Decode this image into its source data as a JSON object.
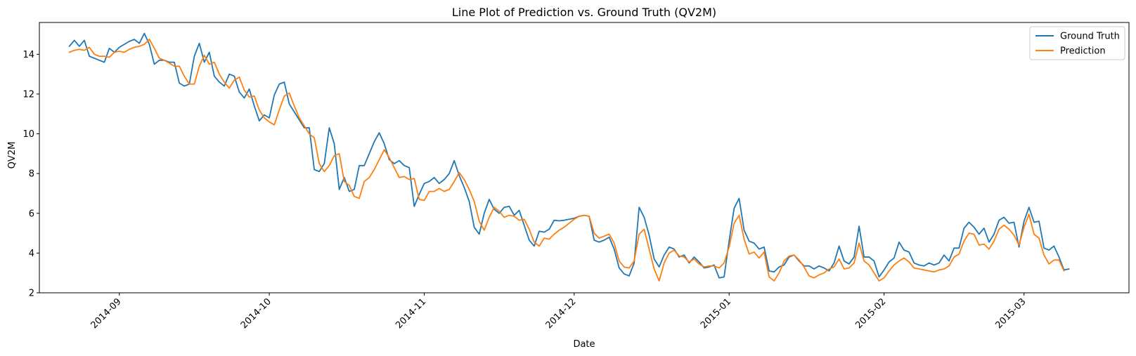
{
  "chart_data": {
    "type": "line",
    "title": "Line Plot of Prediction vs. Ground Truth (QV2M)",
    "xlabel": "Date",
    "ylabel": "QV2M",
    "xlim": [
      "2014-08-16",
      "2015-03-22"
    ],
    "ylim": [
      2,
      15.6
    ],
    "y_ticks": [
      2,
      4,
      6,
      8,
      10,
      12,
      14
    ],
    "x_ticks": [
      "2014-09",
      "2014-10",
      "2014-11",
      "2014-12",
      "2015-01",
      "2015-02",
      "2015-03"
    ],
    "x_tick_dates": [
      "2014-09-01",
      "2014-10-01",
      "2014-11-01",
      "2014-12-01",
      "2015-01-01",
      "2015-02-01",
      "2015-03-01"
    ],
    "grid": false,
    "legend_position": "top-right",
    "start_date": "2014-08-22",
    "series": [
      {
        "name": "Ground Truth",
        "color": "#1f77b4",
        "values": [
          14.4,
          14.7,
          14.4,
          14.7,
          13.9,
          13.8,
          13.7,
          13.6,
          14.3,
          14.1,
          14.35,
          14.5,
          14.65,
          14.75,
          14.55,
          15.05,
          14.5,
          13.5,
          13.7,
          13.7,
          13.6,
          13.6,
          12.55,
          12.4,
          12.5,
          13.9,
          14.55,
          13.6,
          14.1,
          12.9,
          12.6,
          12.4,
          13.0,
          12.9,
          12.1,
          11.8,
          12.25,
          11.4,
          10.65,
          10.95,
          10.8,
          11.95,
          12.5,
          12.6,
          11.5,
          11.1,
          10.7,
          10.3,
          10.3,
          8.2,
          8.1,
          8.5,
          10.3,
          9.5,
          7.2,
          7.8,
          7.1,
          7.2,
          8.4,
          8.4,
          9.0,
          9.6,
          10.05,
          9.5,
          8.7,
          8.5,
          8.65,
          8.4,
          8.3,
          6.35,
          6.95,
          7.5,
          7.6,
          7.8,
          7.5,
          7.7,
          8.0,
          8.65,
          7.9,
          7.3,
          6.6,
          5.3,
          4.95,
          6.0,
          6.7,
          6.2,
          6.0,
          6.3,
          6.35,
          5.9,
          6.15,
          5.4,
          4.65,
          4.35,
          5.1,
          5.05,
          5.2,
          5.65,
          5.62,
          5.65,
          5.7,
          5.75,
          5.85,
          5.9,
          5.85,
          4.65,
          4.55,
          4.65,
          4.8,
          4.2,
          3.25,
          2.95,
          2.85,
          3.5,
          6.3,
          5.8,
          4.9,
          3.7,
          3.3,
          3.9,
          4.3,
          4.2,
          3.8,
          3.9,
          3.5,
          3.8,
          3.55,
          3.25,
          3.3,
          3.4,
          2.75,
          2.8,
          4.6,
          6.25,
          6.75,
          5.15,
          4.6,
          4.5,
          4.2,
          4.3,
          3.1,
          3.05,
          3.3,
          3.4,
          3.8,
          3.9,
          3.6,
          3.35,
          3.35,
          3.2,
          3.35,
          3.25,
          3.1,
          3.5,
          4.35,
          3.6,
          3.45,
          3.8,
          5.35,
          3.8,
          3.8,
          3.6,
          2.8,
          3.15,
          3.55,
          3.75,
          4.55,
          4.15,
          4.05,
          3.5,
          3.4,
          3.35,
          3.5,
          3.4,
          3.5,
          3.9,
          3.6,
          4.25,
          4.25,
          5.25,
          5.55,
          5.3,
          4.95,
          5.25,
          4.55,
          4.95,
          5.65,
          5.8,
          5.5,
          5.55,
          4.3,
          5.6,
          6.3,
          5.55,
          5.6,
          4.25,
          4.15,
          4.35,
          3.8,
          3.15,
          3.2
        ]
      },
      {
        "name": "Prediction",
        "color": "#ff7f0e",
        "values": [
          14.1,
          14.2,
          14.25,
          14.2,
          14.35,
          14.0,
          13.9,
          13.9,
          13.85,
          14.1,
          14.15,
          14.1,
          14.25,
          14.35,
          14.4,
          14.5,
          14.75,
          14.3,
          13.8,
          13.7,
          13.55,
          13.4,
          13.4,
          12.9,
          12.5,
          12.5,
          13.4,
          13.95,
          13.5,
          13.6,
          13.0,
          12.6,
          12.3,
          12.7,
          12.85,
          12.2,
          11.85,
          11.9,
          11.2,
          10.8,
          10.6,
          10.45,
          11.2,
          11.9,
          12.05,
          11.4,
          10.8,
          10.4,
          10.0,
          9.8,
          8.5,
          8.1,
          8.4,
          8.9,
          9.0,
          7.6,
          7.4,
          6.85,
          6.75,
          7.6,
          7.8,
          8.2,
          8.7,
          9.2,
          8.8,
          8.3,
          7.8,
          7.85,
          7.7,
          7.75,
          6.7,
          6.65,
          7.1,
          7.1,
          7.25,
          7.1,
          7.2,
          7.6,
          8.05,
          7.7,
          7.2,
          6.6,
          5.6,
          5.15,
          5.8,
          6.3,
          6.1,
          5.8,
          5.9,
          5.85,
          5.65,
          5.7,
          5.2,
          4.55,
          4.35,
          4.75,
          4.7,
          4.95,
          5.15,
          5.3,
          5.5,
          5.7,
          5.85,
          5.9,
          5.85,
          5.0,
          4.75,
          4.85,
          4.95,
          4.5,
          3.6,
          3.3,
          3.25,
          3.6,
          4.95,
          5.2,
          4.2,
          3.2,
          2.6,
          3.5,
          4.0,
          4.15,
          3.85,
          3.8,
          3.55,
          3.7,
          3.45,
          3.3,
          3.35,
          3.35,
          3.25,
          3.5,
          4.3,
          5.5,
          5.9,
          4.7,
          3.95,
          4.05,
          3.75,
          4.05,
          2.8,
          2.6,
          3.0,
          3.6,
          3.85,
          3.9,
          3.65,
          3.3,
          2.85,
          2.75,
          2.9,
          3.0,
          3.2,
          3.3,
          3.7,
          3.2,
          3.25,
          3.5,
          4.5,
          3.6,
          3.4,
          3.0,
          2.6,
          2.75,
          3.1,
          3.4,
          3.6,
          3.75,
          3.55,
          3.25,
          3.2,
          3.15,
          3.1,
          3.05,
          3.15,
          3.2,
          3.35,
          3.8,
          3.95,
          4.6,
          5.0,
          4.95,
          4.4,
          4.45,
          4.2,
          4.6,
          5.2,
          5.4,
          5.2,
          4.9,
          4.4,
          5.3,
          5.95,
          4.95,
          4.75,
          3.9,
          3.45,
          3.65,
          3.65,
          3.1
        ]
      }
    ]
  }
}
